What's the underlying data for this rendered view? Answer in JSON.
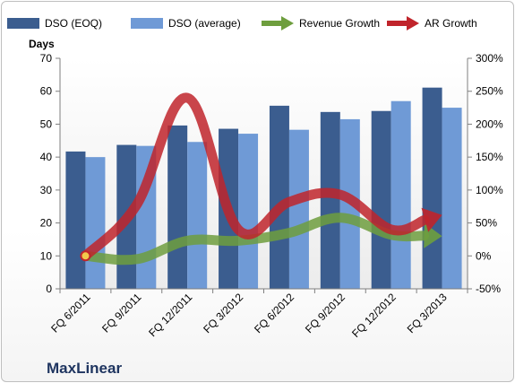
{
  "brand": "MaxLinear",
  "chart_data": {
    "type": "bar",
    "y_left_label": "Days",
    "y_left_lim": [
      0,
      70
    ],
    "y_left_ticks": [
      "0",
      "10",
      "20",
      "30",
      "40",
      "50",
      "60",
      "70"
    ],
    "y_right_lim": [
      -50,
      300
    ],
    "y_right_ticks": [
      "-50%",
      "0%",
      "50%",
      "100%",
      "150%",
      "200%",
      "250%",
      "300%"
    ],
    "categories": [
      "FQ 6/2011",
      "FQ 9/2011",
      "FQ 12/2011",
      "FQ 3/2012",
      "FQ 6/2012",
      "FQ 9/2012",
      "FQ 12/2012",
      "FQ 3/2013"
    ],
    "series": [
      {
        "name": "DSO (EOQ)",
        "kind": "bar",
        "axis": "left",
        "color": "#3b5d8f",
        "values": [
          41.7,
          43.7,
          49.6,
          48.6,
          55.6,
          53.7,
          54.0,
          61.1
        ]
      },
      {
        "name": "DSO (average)",
        "kind": "bar",
        "axis": "left",
        "color": "#6f9ad6",
        "values": [
          40.0,
          43.4,
          44.6,
          47.1,
          48.3,
          51.5,
          57.0,
          55.0
        ]
      },
      {
        "name": "Revenue Growth",
        "kind": "line",
        "axis": "right",
        "color": "#6e9e3e",
        "values": [
          0,
          -5,
          23,
          23,
          35,
          58,
          32,
          30
        ]
      },
      {
        "name": "AR Growth",
        "kind": "line",
        "axis": "right",
        "color": "#c0242b",
        "values": [
          0,
          77,
          240,
          40,
          82,
          93,
          40,
          62
        ]
      }
    ],
    "grid": false,
    "legend_position": "top"
  }
}
